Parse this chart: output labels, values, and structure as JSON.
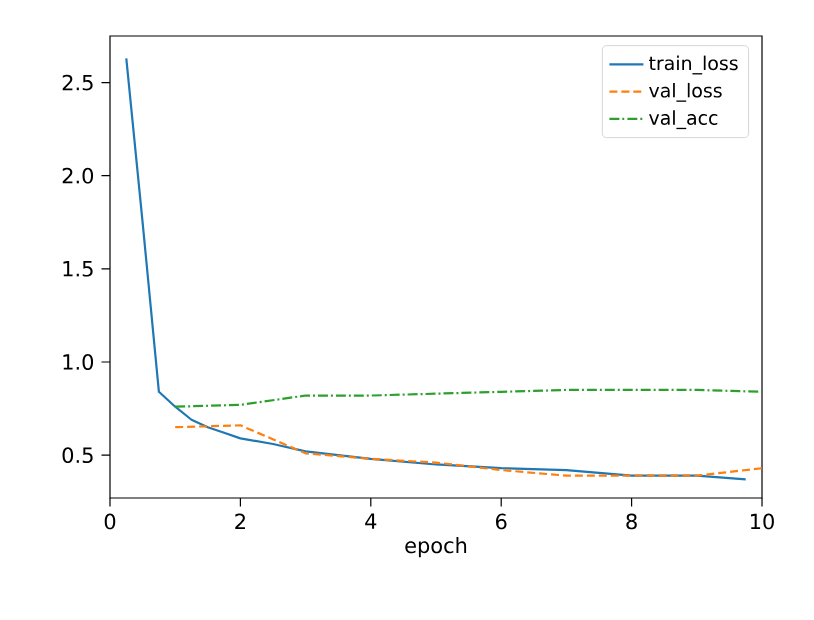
{
  "chart_data": {
    "type": "line",
    "xlabel": "epoch",
    "xlim": [
      0,
      10
    ],
    "xticks": [
      0,
      2,
      4,
      6,
      8,
      10
    ],
    "ylim": [
      0.27,
      2.75
    ],
    "yticks": [
      0.5,
      {
        "value": 1.0,
        "label": "1.0"
      },
      1.5,
      {
        "value": 2.0,
        "label": "2.0"
      },
      2.5
    ],
    "grid": false,
    "legend": "top right",
    "marker": "none",
    "series": [
      {
        "name": "train_loss",
        "color": "#1f77b4",
        "line_style": "solid",
        "x": [
          0.25,
          0.5,
          0.75,
          1.0,
          1.25,
          1.5,
          1.75,
          2.0,
          2.5,
          3.0,
          3.5,
          4.0,
          5.0,
          6.0,
          7.0,
          8.0,
          9.0,
          9.75
        ],
        "values": [
          2.63,
          1.75,
          0.84,
          0.76,
          0.69,
          0.65,
          0.62,
          0.59,
          0.56,
          0.52,
          0.5,
          0.48,
          0.45,
          0.43,
          0.42,
          0.39,
          0.39,
          0.37
        ]
      },
      {
        "name": "val_loss",
        "color": "#ff7f0e",
        "line_style": "dashed",
        "x": [
          1,
          2,
          3,
          4,
          5,
          6,
          7,
          8,
          9,
          10
        ],
        "values": [
          0.65,
          0.66,
          0.51,
          0.48,
          0.46,
          0.42,
          0.39,
          0.39,
          0.39,
          0.43
        ]
      },
      {
        "name": "val_acc",
        "color": "#2ca02c",
        "line_style": "dashdot",
        "x": [
          1,
          2,
          3,
          4,
          5,
          6,
          7,
          8,
          9,
          10
        ],
        "values": [
          0.76,
          0.77,
          0.82,
          0.82,
          0.83,
          0.84,
          0.85,
          0.85,
          0.85,
          0.84
        ]
      }
    ]
  }
}
